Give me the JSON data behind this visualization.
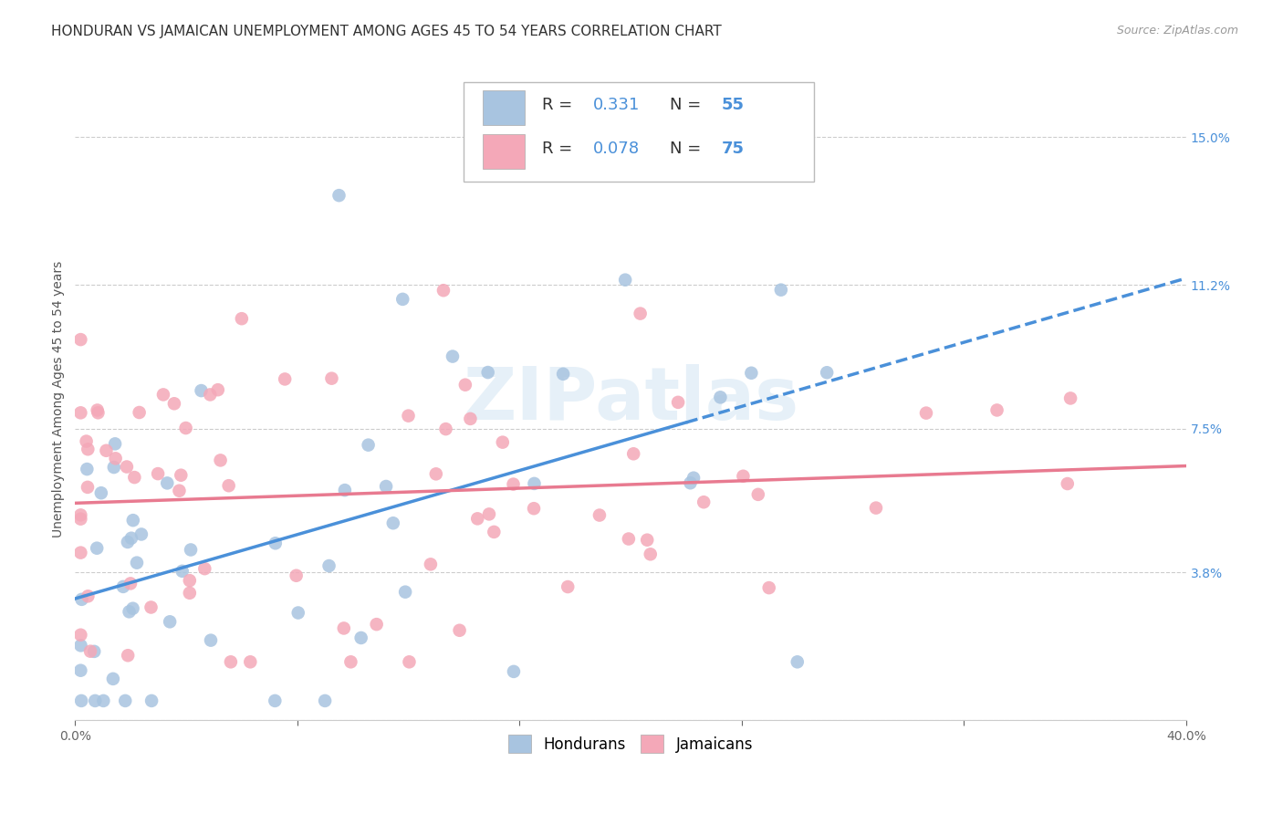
{
  "title": "HONDURAN VS JAMAICAN UNEMPLOYMENT AMONG AGES 45 TO 54 YEARS CORRELATION CHART",
  "source": "Source: ZipAtlas.com",
  "ylabel": "Unemployment Among Ages 45 to 54 years",
  "xlim": [
    0.0,
    0.4
  ],
  "ylim": [
    0.0,
    0.165
  ],
  "x_ticks": [
    0.0,
    0.08,
    0.16,
    0.24,
    0.32,
    0.4
  ],
  "x_tick_labels": [
    "0.0%",
    "",
    "",
    "",
    "",
    "40.0%"
  ],
  "y_ticks_right": [
    0.0,
    0.038,
    0.075,
    0.112,
    0.15
  ],
  "y_tick_labels_right": [
    "",
    "3.8%",
    "7.5%",
    "11.2%",
    "15.0%"
  ],
  "honduran_R": 0.331,
  "honduran_N": 55,
  "jamaican_R": 0.078,
  "jamaican_N": 75,
  "honduran_color": "#a8c4e0",
  "jamaican_color": "#f4a8b8",
  "honduran_line_color": "#4a90d9",
  "jamaican_line_color": "#e87a90",
  "title_fontsize": 11,
  "axis_label_fontsize": 10,
  "tick_fontsize": 10,
  "legend_fontsize": 13
}
